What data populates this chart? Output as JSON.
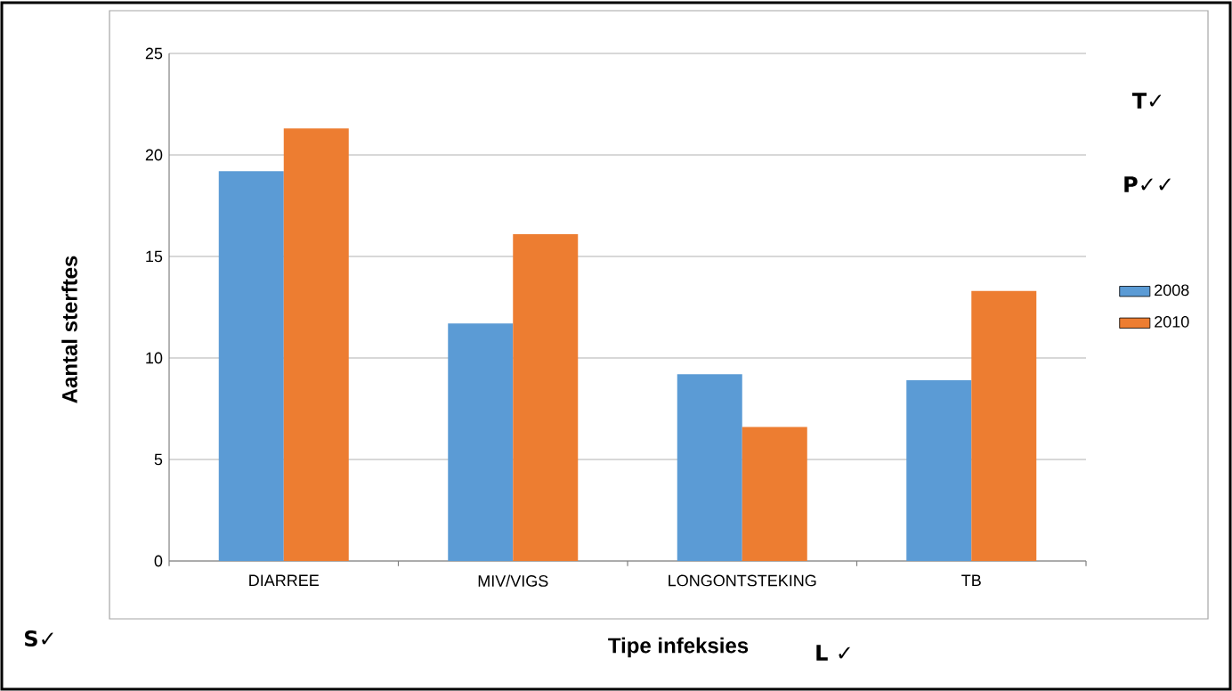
{
  "chart_data": {
    "type": "bar",
    "xlabel": "Tipe infeksies",
    "ylabel": "Aantal sterftes",
    "categories": [
      "DIARREE",
      "MIV/VIGS",
      "LONGONTSTEKING",
      "TB"
    ],
    "series": [
      {
        "name": "2008",
        "color": "#5b9bd5",
        "values": [
          19.2,
          11.7,
          9.2,
          8.9
        ]
      },
      {
        "name": "2010",
        "color": "#ed7d31",
        "values": [
          21.3,
          16.1,
          6.6,
          13.3
        ]
      }
    ],
    "ylim": [
      0,
      25
    ],
    "yticks": [
      0,
      5,
      10,
      15,
      20,
      25
    ],
    "grid": "y",
    "legend": "right",
    "annotations": [
      "T✓",
      "P✓✓",
      "S✓",
      "L ✓"
    ]
  }
}
